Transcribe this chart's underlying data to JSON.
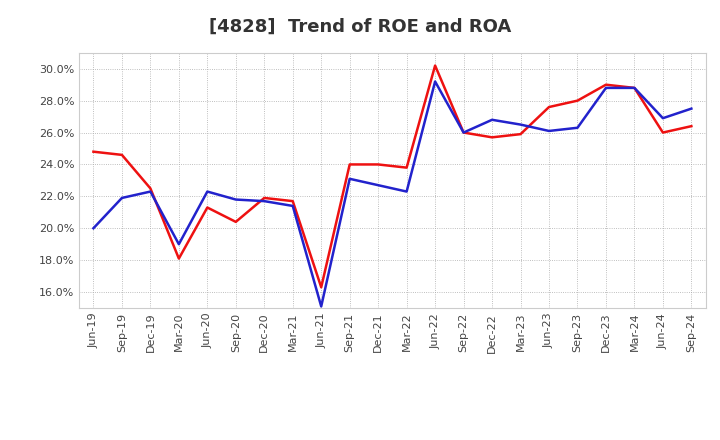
{
  "title": "[4828]  Trend of ROE and ROA",
  "x_labels": [
    "Jun-19",
    "Sep-19",
    "Dec-19",
    "Mar-20",
    "Jun-20",
    "Sep-20",
    "Dec-20",
    "Mar-21",
    "Jun-21",
    "Sep-21",
    "Dec-21",
    "Mar-22",
    "Jun-22",
    "Sep-22",
    "Dec-22",
    "Mar-23",
    "Jun-23",
    "Sep-23",
    "Dec-23",
    "Mar-24",
    "Jun-24",
    "Sep-24"
  ],
  "roe": [
    24.8,
    24.6,
    22.5,
    18.1,
    21.3,
    20.4,
    21.9,
    21.7,
    16.3,
    24.0,
    24.0,
    23.8,
    30.2,
    26.0,
    25.7,
    25.9,
    27.6,
    28.0,
    29.0,
    28.8,
    26.0,
    26.4
  ],
  "roa": [
    20.0,
    21.9,
    22.3,
    19.0,
    22.3,
    21.8,
    21.7,
    21.4,
    15.1,
    23.1,
    22.7,
    22.3,
    29.2,
    26.0,
    26.8,
    26.5,
    26.1,
    26.3,
    28.8,
    28.8,
    26.9,
    27.5
  ],
  "roe_color": "#EE1111",
  "roa_color": "#2222CC",
  "ylim": [
    15.0,
    31.0
  ],
  "yticks": [
    16.0,
    18.0,
    20.0,
    22.0,
    24.0,
    26.0,
    28.0,
    30.0
  ],
  "background_color": "#FFFFFF",
  "plot_bg_color": "#FFFFFF",
  "grid_color": "#AAAAAA",
  "linewidth": 1.8,
  "title_fontsize": 13,
  "tick_fontsize": 8,
  "legend_fontsize": 10,
  "title_color": "#333333"
}
